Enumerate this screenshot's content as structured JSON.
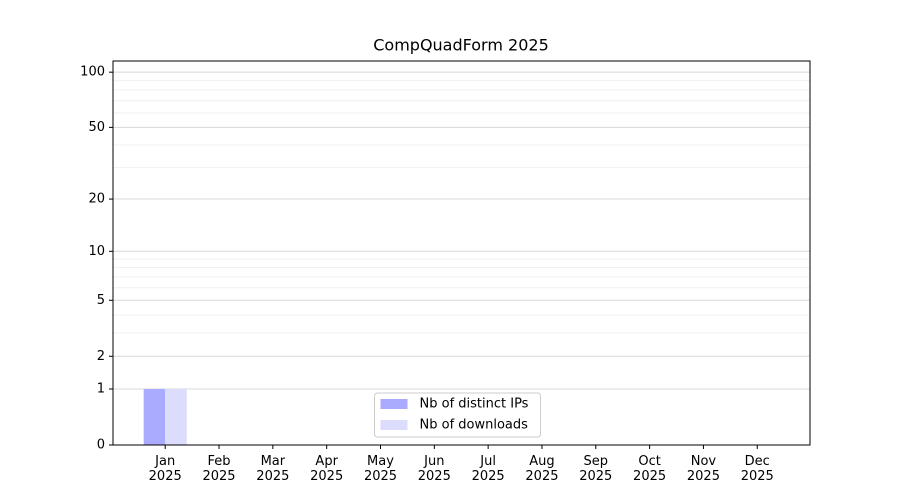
{
  "chart_data": {
    "type": "bar",
    "title": "CompQuadForm 2025",
    "categories": [
      "Jan 2025",
      "Feb 2025",
      "Mar 2025",
      "Apr 2025",
      "May 2025",
      "Jun 2025",
      "Jul 2025",
      "Aug 2025",
      "Sep 2025",
      "Oct 2025",
      "Nov 2025",
      "Dec 2025"
    ],
    "series": [
      {
        "name": "Nb of distinct IPs",
        "color": "#aaaaff",
        "values": [
          1,
          0,
          0,
          0,
          0,
          0,
          0,
          0,
          0,
          0,
          0,
          0
        ]
      },
      {
        "name": "Nb of downloads",
        "color": "#dcdcfc",
        "values": [
          1,
          0,
          0,
          0,
          0,
          0,
          0,
          0,
          0,
          0,
          0,
          0
        ]
      }
    ],
    "yscale": "symlog",
    "ylim": [
      0,
      115
    ],
    "yticks": [
      0,
      1,
      2,
      5,
      10,
      20,
      50,
      100
    ],
    "yminorticks": [
      3,
      4,
      6,
      7,
      8,
      9,
      30,
      40,
      60,
      70,
      80,
      90
    ],
    "grid": true,
    "legend": "lower center"
  }
}
